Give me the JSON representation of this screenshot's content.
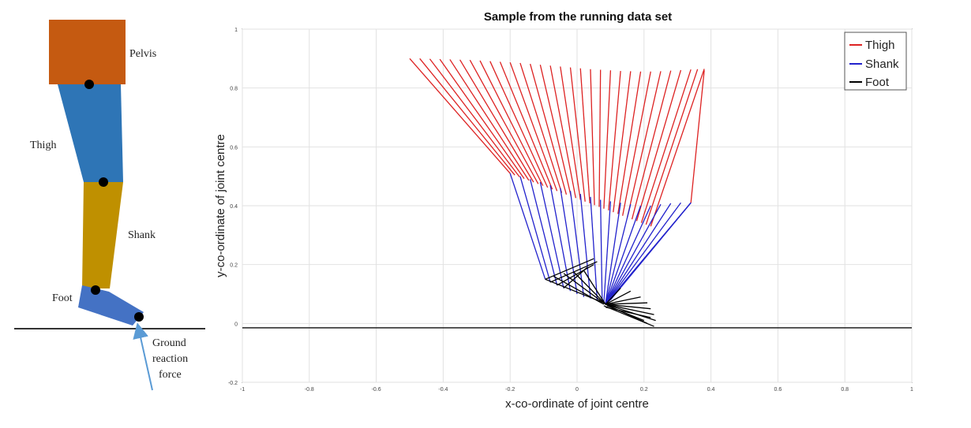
{
  "diagram": {
    "pelvis_label": "Pelvis",
    "thigh_label": "Thigh",
    "shank_label": "Shank",
    "foot_label": "Foot",
    "grf_line1": "Ground",
    "grf_line2": "reaction",
    "grf_line3": "force",
    "colors": {
      "pelvis": "#c55a11",
      "thigh": "#2e75b6",
      "shank": "#bf9000",
      "foot": "#4472c4",
      "joint": "#000000",
      "arrow": "#5b9bd5"
    }
  },
  "chart_data": {
    "type": "line",
    "title": "Sample from the running data set",
    "xlabel": "x-co-ordinate of joint centre",
    "ylabel": "y-co-ordinate of joint centre",
    "xlim": [
      -1,
      1
    ],
    "ylim": [
      -0.2,
      1
    ],
    "xticks": [
      "-1",
      "-0.8",
      "-0.6",
      "-0.4",
      "-0.2",
      "0",
      "0.2",
      "0.4",
      "0.6",
      "0.8",
      "1"
    ],
    "xtick_values": [
      -1,
      -0.8,
      -0.6,
      -0.4,
      -0.2,
      0,
      0.2,
      0.4,
      0.6,
      0.8,
      1
    ],
    "yticks": [
      "-0.2",
      "0",
      "0.2",
      "0.4",
      "0.6",
      "0.8",
      "1"
    ],
    "ytick_values": [
      -0.2,
      0,
      0.2,
      0.4,
      0.6,
      0.8,
      1
    ],
    "grid": true,
    "legend_position": "top-right",
    "ground_y": -0.015,
    "series": [
      {
        "name": "Thigh",
        "color": "#dd2222",
        "segments": [
          [
            [
              -0.5,
              0.9
            ],
            [
              -0.2,
              0.51
            ]
          ],
          [
            [
              -0.47,
              0.9
            ],
            [
              -0.186,
              0.504
            ]
          ],
          [
            [
              -0.44,
              0.899
            ],
            [
              -0.172,
              0.498
            ]
          ],
          [
            [
              -0.41,
              0.898
            ],
            [
              -0.158,
              0.492
            ]
          ],
          [
            [
              -0.38,
              0.897
            ],
            [
              -0.144,
              0.486
            ]
          ],
          [
            [
              -0.35,
              0.896
            ],
            [
              -0.13,
              0.48
            ]
          ],
          [
            [
              -0.32,
              0.895
            ],
            [
              -0.116,
              0.474
            ]
          ],
          [
            [
              -0.29,
              0.893
            ],
            [
              -0.102,
              0.468
            ]
          ],
          [
            [
              -0.26,
              0.891
            ],
            [
              -0.088,
              0.462
            ]
          ],
          [
            [
              -0.23,
              0.889
            ],
            [
              -0.074,
              0.456
            ]
          ],
          [
            [
              -0.2,
              0.887
            ],
            [
              -0.06,
              0.45
            ]
          ],
          [
            [
              -0.17,
              0.885
            ],
            [
              -0.046,
              0.444
            ]
          ],
          [
            [
              -0.14,
              0.882
            ],
            [
              -0.032,
              0.438
            ]
          ],
          [
            [
              -0.11,
              0.879
            ],
            [
              -0.018,
              0.432
            ]
          ],
          [
            [
              -0.08,
              0.876
            ],
            [
              -0.004,
              0.426
            ]
          ],
          [
            [
              -0.05,
              0.873
            ],
            [
              0.01,
              0.42
            ]
          ],
          [
            [
              -0.02,
              0.87
            ],
            [
              0.024,
              0.414
            ]
          ],
          [
            [
              0.01,
              0.867
            ],
            [
              0.038,
              0.408
            ]
          ],
          [
            [
              0.04,
              0.864
            ],
            [
              0.052,
              0.402
            ]
          ],
          [
            [
              0.07,
              0.862
            ],
            [
              0.066,
              0.396
            ]
          ],
          [
            [
              0.1,
              0.86
            ],
            [
              0.08,
              0.39
            ]
          ],
          [
            [
              0.13,
              0.858
            ],
            [
              0.094,
              0.384
            ]
          ],
          [
            [
              0.16,
              0.857
            ],
            [
              0.108,
              0.378
            ]
          ],
          [
            [
              0.19,
              0.856
            ],
            [
              0.122,
              0.372
            ]
          ],
          [
            [
              0.22,
              0.856
            ],
            [
              0.136,
              0.366
            ]
          ],
          [
            [
              0.25,
              0.857
            ],
            [
              0.15,
              0.36
            ]
          ],
          [
            [
              0.28,
              0.859
            ],
            [
              0.164,
              0.354
            ]
          ],
          [
            [
              0.31,
              0.861
            ],
            [
              0.178,
              0.348
            ]
          ],
          [
            [
              0.34,
              0.863
            ],
            [
              0.192,
              0.342
            ]
          ],
          [
            [
              0.36,
              0.864
            ],
            [
              0.206,
              0.336
            ]
          ],
          [
            [
              0.38,
              0.865
            ],
            [
              0.22,
              0.33
            ]
          ],
          [
            [
              0.38,
              0.86
            ],
            [
              0.34,
              0.41
            ]
          ]
        ]
      },
      {
        "name": "Shank",
        "color": "#2222cc",
        "segments": [
          [
            [
              -0.2,
              0.51
            ],
            [
              -0.095,
              0.15
            ]
          ],
          [
            [
              -0.17,
              0.5
            ],
            [
              -0.08,
              0.14
            ]
          ],
          [
            [
              -0.14,
              0.49
            ],
            [
              -0.06,
              0.13
            ]
          ],
          [
            [
              -0.11,
              0.48
            ],
            [
              -0.04,
              0.12
            ]
          ],
          [
            [
              -0.08,
              0.47
            ],
            [
              -0.02,
              0.11
            ]
          ],
          [
            [
              -0.05,
              0.46
            ],
            [
              0.0,
              0.1
            ]
          ],
          [
            [
              -0.02,
              0.45
            ],
            [
              0.02,
              0.09
            ]
          ],
          [
            [
              0.01,
              0.44
            ],
            [
              0.04,
              0.085
            ]
          ],
          [
            [
              0.04,
              0.43
            ],
            [
              0.06,
              0.08
            ]
          ],
          [
            [
              0.07,
              0.42
            ],
            [
              0.075,
              0.075
            ]
          ],
          [
            [
              0.1,
              0.415
            ],
            [
              0.08,
              0.07
            ]
          ],
          [
            [
              0.13,
              0.41
            ],
            [
              0.085,
              0.068
            ]
          ],
          [
            [
              0.16,
              0.405
            ],
            [
              0.085,
              0.066
            ]
          ],
          [
            [
              0.19,
              0.4
            ],
            [
              0.085,
              0.065
            ]
          ],
          [
            [
              0.22,
              0.4
            ],
            [
              0.085,
              0.065
            ]
          ],
          [
            [
              0.25,
              0.405
            ],
            [
              0.085,
              0.065
            ]
          ],
          [
            [
              0.28,
              0.408
            ],
            [
              0.085,
              0.065
            ]
          ],
          [
            [
              0.31,
              0.41
            ],
            [
              0.085,
              0.065
            ]
          ],
          [
            [
              0.34,
              0.41
            ],
            [
              0.085,
              0.065
            ]
          ],
          [
            [
              0.34,
              0.41
            ],
            [
              0.09,
              0.07
            ]
          ],
          [
            [
              0.34,
              0.41
            ],
            [
              0.095,
              0.075
            ]
          ],
          [
            [
              0.34,
              0.41
            ],
            [
              0.1,
              0.08
            ]
          ]
        ]
      },
      {
        "name": "Foot",
        "color": "#000000",
        "segments": [
          [
            [
              -0.095,
              0.15
            ],
            [
              0.05,
              0.22
            ]
          ],
          [
            [
              -0.08,
              0.14
            ],
            [
              0.06,
              0.21
            ]
          ],
          [
            [
              -0.06,
              0.13
            ],
            [
              0.05,
              0.2
            ]
          ],
          [
            [
              -0.04,
              0.12
            ],
            [
              0.03,
              0.19
            ]
          ],
          [
            [
              -0.095,
              0.15
            ],
            [
              0.08,
              0.07
            ]
          ],
          [
            [
              -0.07,
              0.16
            ],
            [
              0.08,
              0.065
            ]
          ],
          [
            [
              -0.04,
              0.17
            ],
            [
              0.085,
              0.065
            ]
          ],
          [
            [
              -0.01,
              0.175
            ],
            [
              0.085,
              0.065
            ]
          ],
          [
            [
              0.02,
              0.18
            ],
            [
              0.085,
              0.065
            ]
          ],
          [
            [
              0.085,
              0.065
            ],
            [
              0.13,
              0.12
            ]
          ],
          [
            [
              0.085,
              0.065
            ],
            [
              0.16,
              0.11
            ]
          ],
          [
            [
              0.085,
              0.065
            ],
            [
              0.19,
              0.09
            ]
          ],
          [
            [
              0.085,
              0.065
            ],
            [
              0.21,
              0.07
            ]
          ],
          [
            [
              0.085,
              0.065
            ],
            [
              0.22,
              0.05
            ]
          ],
          [
            [
              0.085,
              0.065
            ],
            [
              0.23,
              0.03
            ]
          ],
          [
            [
              0.085,
              0.065
            ],
            [
              0.235,
              0.01
            ]
          ],
          [
            [
              0.08,
              0.06
            ],
            [
              0.23,
              -0.01
            ]
          ],
          [
            [
              0.085,
              0.065
            ],
            [
              0.21,
              0.0
            ]
          ],
          [
            [
              0.09,
              0.06
            ],
            [
              0.2,
              0.01
            ]
          ],
          [
            [
              0.085,
              0.055
            ],
            [
              0.22,
              0.02
            ]
          ]
        ]
      }
    ]
  }
}
